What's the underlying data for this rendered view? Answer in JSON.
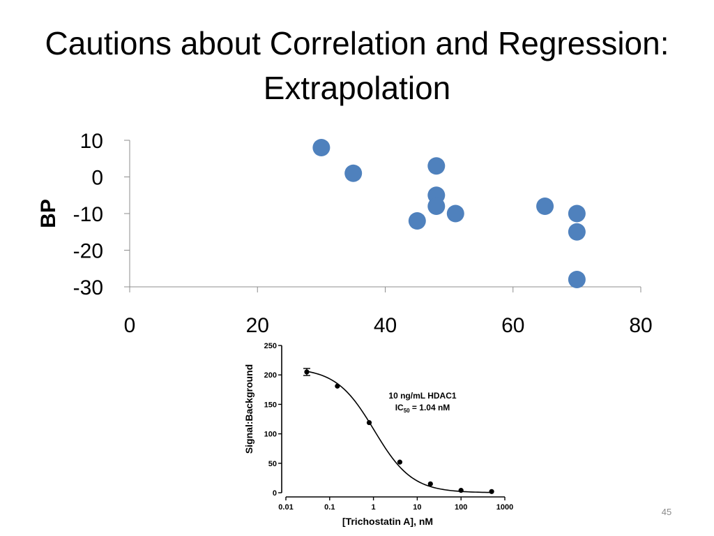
{
  "slide": {
    "title_line1": "Cautions about Correlation and Regression:",
    "title_line2": "Extrapolation",
    "page_number": "45"
  },
  "chart_data": [
    {
      "type": "scatter",
      "title": "",
      "xlabel": "",
      "ylabel": "BP",
      "xlim": [
        0,
        80
      ],
      "ylim": [
        -30,
        10
      ],
      "x_ticks": [
        0,
        20,
        40,
        60,
        80
      ],
      "y_ticks": [
        -30,
        -20,
        -10,
        0,
        10
      ],
      "grid": false,
      "colors": {
        "marker": "#4F81BD",
        "axis": "#8c8c8c"
      },
      "points": [
        {
          "x": 30,
          "y": 8
        },
        {
          "x": 35,
          "y": 1
        },
        {
          "x": 45,
          "y": -12
        },
        {
          "x": 48,
          "y": 3
        },
        {
          "x": 48,
          "y": -5
        },
        {
          "x": 48,
          "y": -8
        },
        {
          "x": 51,
          "y": -10
        },
        {
          "x": 65,
          "y": -8
        },
        {
          "x": 70,
          "y": -10
        },
        {
          "x": 70,
          "y": -15
        },
        {
          "x": 70,
          "y": -28
        }
      ]
    },
    {
      "type": "line",
      "title": "",
      "xlabel": "[Trichostatin A], nM",
      "ylabel": "Signal:Background",
      "x_scale": "log",
      "xlim": [
        0.01,
        1000
      ],
      "ylim": [
        0,
        250
      ],
      "x_tick_labels": [
        "0.01",
        "0.1",
        "1",
        "10",
        "100",
        "1000"
      ],
      "y_ticks": [
        0,
        50,
        100,
        150,
        200,
        250
      ],
      "annotation_line1": "10 ng/mL HDAC1",
      "annotation_ic_prefix": "IC",
      "annotation_ic_sub": "50",
      "annotation_ic_value": " = 1.04 nM",
      "fit": {
        "top": 212,
        "bottom": 0,
        "ic50": 1.04,
        "hill": 1
      },
      "points": [
        {
          "x": 0.03,
          "y": 205,
          "err": 6
        },
        {
          "x": 0.15,
          "y": 181
        },
        {
          "x": 0.8,
          "y": 119
        },
        {
          "x": 4,
          "y": 52
        },
        {
          "x": 20,
          "y": 15
        },
        {
          "x": 100,
          "y": 4
        },
        {
          "x": 500,
          "y": 2
        }
      ],
      "colors": {
        "line": "#000000"
      }
    }
  ]
}
